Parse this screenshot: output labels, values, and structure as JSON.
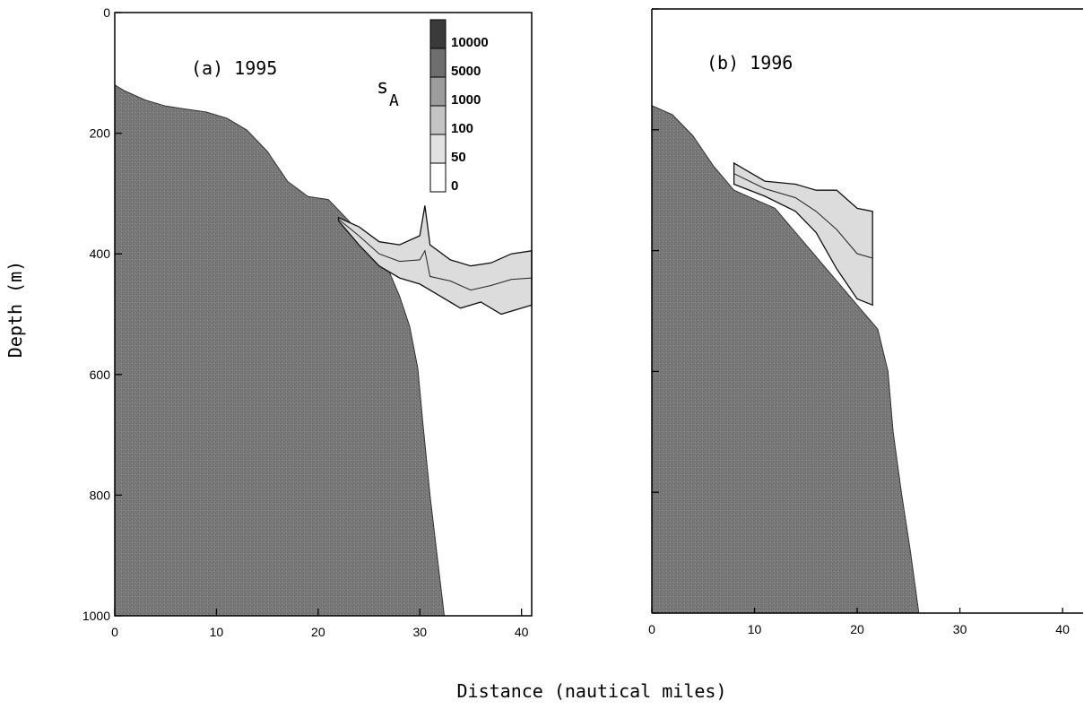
{
  "chart_data": {
    "type": "area",
    "xlabel": "Distance (nautical miles)",
    "ylabel": "Depth (m)",
    "legend": {
      "title_main": "s",
      "title_sub": "A",
      "levels": [
        "10000",
        "5000",
        "1000",
        "100",
        "50",
        "0"
      ],
      "colors": [
        "#3a3a3a",
        "#6e6e6e",
        "#9c9c9c",
        "#c4c4c4",
        "#e2e2e2",
        "#ffffff"
      ],
      "placement": "top-right of panel (a)"
    },
    "panels": [
      {
        "label": "(a) 1995",
        "xlim": [
          0,
          41
        ],
        "ylim": [
          0,
          1000
        ],
        "xticks": [
          0,
          10,
          20,
          30,
          40
        ],
        "xtick_labels": [
          "0",
          "10",
          "20",
          "30",
          "40"
        ],
        "yticks": [
          0,
          200,
          400,
          600,
          800,
          1000
        ],
        "ytick_labels": [
          "0",
          "200",
          "400",
          "600",
          "800",
          "1000"
        ],
        "bottom_profile": [
          [
            0,
            120
          ],
          [
            1,
            130
          ],
          [
            3,
            145
          ],
          [
            5,
            155
          ],
          [
            7,
            160
          ],
          [
            9,
            165
          ],
          [
            11,
            175
          ],
          [
            13,
            195
          ],
          [
            15,
            230
          ],
          [
            17,
            280
          ],
          [
            19,
            305
          ],
          [
            21,
            310
          ],
          [
            23,
            345
          ],
          [
            25,
            385
          ],
          [
            27,
            430
          ],
          [
            28,
            470
          ],
          [
            29,
            520
          ],
          [
            29.8,
            590
          ],
          [
            30.3,
            680
          ],
          [
            31,
            800
          ],
          [
            31.7,
            900
          ],
          [
            32.4,
            1000
          ]
        ],
        "backscatter_layer": {
          "x_range": [
            22,
            41
          ],
          "depth_top": [
            [
              22,
              340
            ],
            [
              24,
              355
            ],
            [
              26,
              380
            ],
            [
              28,
              385
            ],
            [
              30,
              370
            ],
            [
              30.5,
              320
            ],
            [
              31,
              385
            ],
            [
              33,
              410
            ],
            [
              35,
              420
            ],
            [
              37,
              415
            ],
            [
              39,
              400
            ],
            [
              41,
              395
            ]
          ],
          "depth_bottom": [
            [
              22,
              345
            ],
            [
              24,
              385
            ],
            [
              26,
              420
            ],
            [
              28,
              440
            ],
            [
              30,
              450
            ],
            [
              32,
              470
            ],
            [
              34,
              490
            ],
            [
              36,
              480
            ],
            [
              38,
              500
            ],
            [
              40,
              490
            ],
            [
              41,
              485
            ]
          ]
        }
      },
      {
        "label": "(b) 1996",
        "xlim": [
          0,
          42
        ],
        "ylim": [
          0,
          1000
        ],
        "xticks": [
          0,
          10,
          20,
          30,
          40
        ],
        "xtick_labels": [
          "0",
          "10",
          "20",
          "30",
          "40"
        ],
        "yticks": [
          0,
          200,
          400,
          600,
          800,
          1000
        ],
        "ytick_labels": [],
        "bottom_profile": [
          [
            0,
            160
          ],
          [
            2,
            175
          ],
          [
            4,
            210
          ],
          [
            6,
            260
          ],
          [
            8,
            300
          ],
          [
            10,
            315
          ],
          [
            12,
            330
          ],
          [
            14,
            370
          ],
          [
            16,
            410
          ],
          [
            18,
            450
          ],
          [
            20,
            490
          ],
          [
            22,
            530
          ],
          [
            23,
            600
          ],
          [
            23.5,
            700
          ],
          [
            24.3,
            800
          ],
          [
            25.2,
            900
          ],
          [
            26,
            1000
          ]
        ],
        "backscatter_layer": {
          "x_range": [
            8,
            22
          ],
          "depth_top": [
            [
              8,
              255
            ],
            [
              11,
              285
            ],
            [
              14,
              290
            ],
            [
              16,
              300
            ],
            [
              18,
              300
            ],
            [
              20,
              330
            ],
            [
              21.5,
              335
            ]
          ],
          "depth_bottom": [
            [
              8,
              290
            ],
            [
              11,
              310
            ],
            [
              14,
              335
            ],
            [
              16,
              370
            ],
            [
              18,
              430
            ],
            [
              20,
              480
            ],
            [
              21.5,
              490
            ]
          ]
        }
      }
    ]
  }
}
